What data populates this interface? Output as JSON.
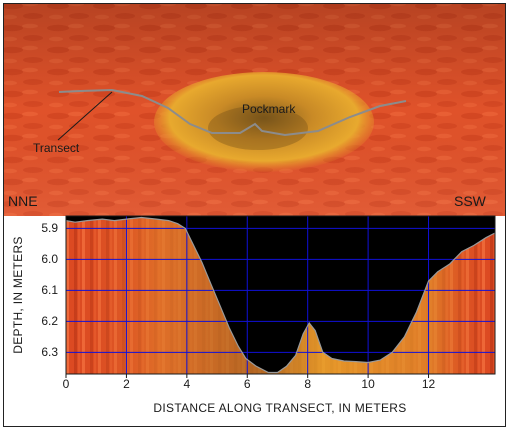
{
  "scene": {
    "annotations": {
      "transect": "Transect",
      "pockmark": "Pockmark"
    },
    "direction_left": "NNE",
    "direction_right": "SSW"
  },
  "colors": {
    "seafloor": "#e0522a",
    "pockmark_fill": "#e6a22a",
    "grid": "#1010d8",
    "profile_line": "#8a8a8a",
    "background": "#000000"
  },
  "chart_data": {
    "type": "area",
    "xlabel": "DISTANCE ALONG TRANSECT, IN METERS",
    "ylabel": "DEPTH, IN METERS",
    "x_ticks": [
      "0",
      "2",
      "4",
      "6",
      "8",
      "10",
      "12"
    ],
    "y_ticks": [
      "5.9",
      "6.0",
      "6.1",
      "6.2",
      "6.3"
    ],
    "xlim": [
      0,
      14.2
    ],
    "ylim": [
      5.86,
      6.37
    ],
    "y_inverted": true,
    "x": [
      0,
      0.3,
      0.7,
      1.2,
      1.6,
      2.0,
      2.5,
      3.0,
      3.4,
      3.7,
      3.95,
      4.2,
      4.5,
      4.8,
      5.1,
      5.4,
      5.7,
      5.95,
      6.3,
      6.7,
      7.0,
      7.3,
      7.6,
      7.85,
      8.05,
      8.25,
      8.5,
      8.8,
      9.2,
      9.6,
      10.0,
      10.4,
      10.8,
      11.2,
      11.6,
      12.0,
      12.3,
      12.7,
      13.1,
      13.5,
      13.9,
      14.2
    ],
    "y": [
      5.875,
      5.88,
      5.875,
      5.87,
      5.875,
      5.87,
      5.865,
      5.87,
      5.875,
      5.885,
      5.9,
      5.95,
      6.01,
      6.08,
      6.15,
      6.22,
      6.28,
      6.32,
      6.345,
      6.365,
      6.365,
      6.345,
      6.31,
      6.24,
      6.205,
      6.23,
      6.3,
      6.32,
      6.328,
      6.33,
      6.333,
      6.325,
      6.3,
      6.25,
      6.17,
      6.07,
      6.04,
      6.015,
      5.975,
      5.955,
      5.93,
      5.915
    ]
  }
}
